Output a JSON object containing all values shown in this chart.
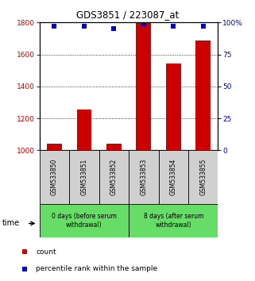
{
  "title": "GDS3851 / 223087_at",
  "samples": [
    "GSM533850",
    "GSM533851",
    "GSM533852",
    "GSM533853",
    "GSM533854",
    "GSM533855"
  ],
  "count_values": [
    1040,
    1255,
    1040,
    1795,
    1545,
    1685
  ],
  "percentile_values": [
    97,
    97,
    95,
    99,
    97,
    97
  ],
  "ylim_left": [
    1000,
    1800
  ],
  "ylim_right": [
    0,
    100
  ],
  "yticks_left": [
    1000,
    1200,
    1400,
    1600,
    1800
  ],
  "yticks_right": [
    0,
    25,
    50,
    75,
    100
  ],
  "groups": [
    {
      "label": "0 days (before serum\nwithdrawal)"
    },
    {
      "label": "8 days (after serum\nwithdrawal)"
    }
  ],
  "bar_color": "#cc0000",
  "square_color": "#0000cc",
  "left_axis_color": "#cc0000",
  "right_axis_color": "#0000cc",
  "sample_bg": "#d0d0d0",
  "group_bg": "#66dd66",
  "legend_count_color": "#cc0000",
  "legend_pct_color": "#0000cc",
  "bar_width": 0.5,
  "grid_color": "#000000",
  "grid_ticks": [
    1200,
    1400,
    1600
  ]
}
